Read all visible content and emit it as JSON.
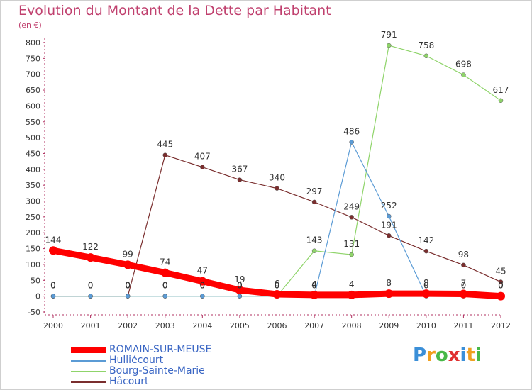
{
  "title": "Evolution du Montant de la Dette par Habitant",
  "subtitle": "(en €)",
  "logo": {
    "text": "Proxiti",
    "colors": [
      "#3b8fd8",
      "#f0a020",
      "#48b848",
      "#e03030",
      "#3b8fd8",
      "#f0a020",
      "#48b848"
    ]
  },
  "chart_data": {
    "type": "line",
    "x": [
      2000,
      2001,
      2002,
      2003,
      2004,
      2005,
      2006,
      2007,
      2008,
      2009,
      2010,
      2011,
      2012
    ],
    "ylim": [
      -50,
      800
    ],
    "yticks": [
      -50,
      0,
      50,
      100,
      150,
      200,
      250,
      300,
      350,
      400,
      450,
      500,
      550,
      600,
      650,
      700,
      750,
      800
    ],
    "grid": false,
    "legend_position": "bottom-left",
    "series": [
      {
        "name": "ROMAIN-SUR-MEUSE",
        "color": "#ff0000",
        "values": [
          144,
          122,
          99,
          74,
          47,
          19,
          6,
          4,
          4,
          8,
          8,
          7,
          0
        ]
      },
      {
        "name": "Hulliécourt",
        "color": "#5b9bd5",
        "values": [
          0,
          0,
          0,
          0,
          0,
          0,
          0,
          0,
          486,
          252,
          0,
          0,
          0
        ]
      },
      {
        "name": "Bourg-Sainte-Marie",
        "color": "#8fd46a",
        "values": [
          0,
          0,
          0,
          0,
          0,
          0,
          0,
          143,
          131,
          791,
          758,
          698,
          617
        ]
      },
      {
        "name": "Hâcourt",
        "color": "#7a2e2e",
        "values": [
          0,
          0,
          0,
          445,
          407,
          367,
          340,
          297,
          249,
          191,
          142,
          98,
          45
        ]
      }
    ]
  }
}
